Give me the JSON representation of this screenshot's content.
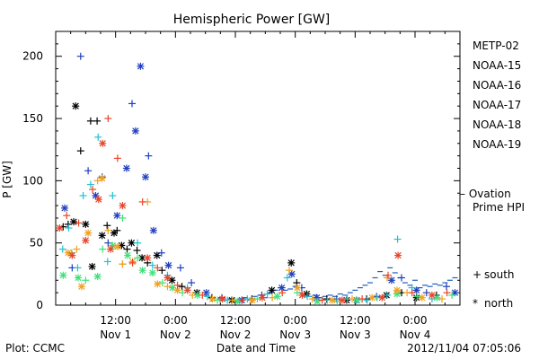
{
  "chart_data": {
    "type": "scatter",
    "title": "Hemispheric Power [GW]",
    "ylabel": "P [GW]",
    "xlabel": "Date and Time",
    "footer_left": "Plot: CCMC",
    "footer_right": "2012/11/04 07:05:06",
    "ylim": [
      0,
      220
    ],
    "xlim_hours": [
      0,
      81
    ],
    "y_ticks": [
      0,
      50,
      100,
      150,
      200
    ],
    "x_ticks": [
      {
        "h": 12,
        "time": "12:00",
        "date": "Nov 1"
      },
      {
        "h": 24,
        "time": "0:00",
        "date": "Nov 2"
      },
      {
        "h": 36,
        "time": "12:00",
        "date": "Nov 2"
      },
      {
        "h": 48,
        "time": "0:00",
        "date": "Nov 3"
      },
      {
        "h": 60,
        "time": "12:00",
        "date": "Nov 3"
      },
      {
        "h": 72,
        "time": "0:00",
        "date": "Nov 4"
      }
    ],
    "legend": {
      "satellites": [
        {
          "name": "METP-02",
          "color": "#000000"
        },
        {
          "name": "NOAA-15",
          "color": "#1f3fbf"
        },
        {
          "name": "NOAA-16",
          "color": "#22c0d0"
        },
        {
          "name": "NOAA-17",
          "color": "#3ee07a"
        },
        {
          "name": "NOAA-18",
          "color": "#f0a020"
        },
        {
          "name": "NOAA-19",
          "color": "#e8442a"
        }
      ],
      "ovation": {
        "label_1": "– Ovation",
        "label_2": "Prime HPI",
        "color": "#1f5fbf"
      },
      "markers": [
        {
          "symbol": "+",
          "label": "south"
        },
        {
          "symbol": "*",
          "label": "north"
        }
      ]
    },
    "series": [
      {
        "name": "METP-02",
        "color": "#000000",
        "points": [
          [
            1.5,
            63,
            "+"
          ],
          [
            2.5,
            65,
            "+"
          ],
          [
            3.6,
            67,
            "*"
          ],
          [
            4,
            160,
            "*"
          ],
          [
            5,
            124,
            "+"
          ],
          [
            6,
            65,
            "*"
          ],
          [
            7,
            148,
            "+"
          ],
          [
            7.3,
            31,
            "*"
          ],
          [
            8.3,
            148,
            "+"
          ],
          [
            9.3,
            56,
            "*"
          ],
          [
            10.3,
            64,
            "+"
          ],
          [
            11.7,
            58,
            "*"
          ],
          [
            12.3,
            60,
            "+"
          ],
          [
            13.2,
            48,
            "*"
          ],
          [
            14.3,
            45,
            "+"
          ],
          [
            15.2,
            50,
            "*"
          ],
          [
            16.3,
            44,
            "+"
          ],
          [
            17.3,
            38,
            "*"
          ],
          [
            18.4,
            34,
            "+"
          ],
          [
            20.3,
            40,
            "*"
          ],
          [
            21.3,
            28,
            "+"
          ],
          [
            23.3,
            20,
            "*"
          ],
          [
            25.3,
            15,
            "+"
          ],
          [
            28.3,
            10,
            "*"
          ],
          [
            31.3,
            6,
            "+"
          ],
          [
            35.3,
            4,
            "*"
          ],
          [
            39.3,
            5,
            "+"
          ],
          [
            43.3,
            12,
            "*"
          ],
          [
            47.2,
            34,
            "*"
          ],
          [
            48.3,
            18,
            "+"
          ],
          [
            50.3,
            9,
            "*"
          ],
          [
            54.3,
            5,
            "+"
          ],
          [
            58.3,
            4,
            "*"
          ],
          [
            62.3,
            5,
            "+"
          ],
          [
            66.3,
            8,
            "*"
          ],
          [
            69.3,
            10,
            "+"
          ],
          [
            72.3,
            6,
            "*"
          ],
          [
            76.3,
            8,
            "+"
          ]
        ]
      },
      {
        "name": "NOAA-15",
        "color": "#1f3fbf",
        "points": [
          [
            1.8,
            78,
            "*"
          ],
          [
            3.3,
            30,
            "+"
          ],
          [
            5,
            200,
            "+"
          ],
          [
            6.5,
            108,
            "+"
          ],
          [
            8,
            88,
            "*"
          ],
          [
            9.3,
            103,
            "+"
          ],
          [
            10.5,
            50,
            "+"
          ],
          [
            12.3,
            72,
            "*"
          ],
          [
            14.2,
            110,
            "*"
          ],
          [
            15.3,
            162,
            "+"
          ],
          [
            16,
            140,
            "*"
          ],
          [
            17,
            192,
            "*"
          ],
          [
            18,
            103,
            "*"
          ],
          [
            18.6,
            120,
            "+"
          ],
          [
            19.6,
            60,
            "*"
          ],
          [
            21.2,
            42,
            "+"
          ],
          [
            22.6,
            32,
            "*"
          ],
          [
            25,
            30,
            "+"
          ],
          [
            27.2,
            18,
            "+"
          ],
          [
            30.2,
            10,
            "*"
          ],
          [
            33.3,
            6,
            "+"
          ],
          [
            37.3,
            4,
            "*"
          ],
          [
            41.3,
            8,
            "+"
          ],
          [
            45.3,
            14,
            "*"
          ],
          [
            47.3,
            25,
            "*"
          ],
          [
            49.3,
            14,
            "+"
          ],
          [
            52.3,
            6,
            "*"
          ],
          [
            56.3,
            5,
            "+"
          ],
          [
            60.3,
            4,
            "*"
          ],
          [
            64.3,
            7,
            "+"
          ],
          [
            67.3,
            20,
            "*"
          ],
          [
            69.3,
            22,
            "+"
          ],
          [
            72.3,
            12,
            "*"
          ],
          [
            74.3,
            10,
            "+"
          ],
          [
            78.3,
            15,
            "+"
          ],
          [
            80,
            10,
            "*"
          ]
        ]
      },
      {
        "name": "NOAA-16",
        "color": "#22c0d0",
        "points": [
          [
            1.4,
            45,
            "+"
          ],
          [
            2.6,
            62,
            "+"
          ],
          [
            4.4,
            30,
            "+"
          ],
          [
            5.5,
            88,
            "+"
          ],
          [
            7,
            97,
            "+"
          ],
          [
            8.5,
            135,
            "+"
          ],
          [
            10.4,
            35,
            "+"
          ],
          [
            11.4,
            88,
            "+"
          ],
          [
            13.4,
            33,
            "+"
          ],
          [
            16.4,
            50,
            "+"
          ],
          [
            19.4,
            32,
            "+"
          ],
          [
            22.4,
            24,
            "+"
          ],
          [
            26.4,
            14,
            "+"
          ],
          [
            30.4,
            7,
            "+"
          ],
          [
            34.4,
            4,
            "+"
          ],
          [
            38.4,
            5,
            "+"
          ],
          [
            42.4,
            9,
            "+"
          ],
          [
            46.4,
            22,
            "+"
          ],
          [
            50.4,
            7,
            "+"
          ],
          [
            54.4,
            4,
            "+"
          ],
          [
            58.4,
            5,
            "+"
          ],
          [
            62.4,
            4,
            "+"
          ],
          [
            66.4,
            8,
            "+"
          ],
          [
            68.5,
            53,
            "+"
          ],
          [
            71.4,
            14,
            "+"
          ],
          [
            75.4,
            5,
            "+"
          ]
        ]
      },
      {
        "name": "NOAA-17",
        "color": "#3ee07a",
        "points": [
          [
            1.5,
            24,
            "*"
          ],
          [
            3.2,
            42,
            "+"
          ],
          [
            4.5,
            22,
            "*"
          ],
          [
            6,
            20,
            "+"
          ],
          [
            8.4,
            23,
            "*"
          ],
          [
            9.4,
            45,
            "+"
          ],
          [
            11.4,
            48,
            "*"
          ],
          [
            13.4,
            70,
            "+"
          ],
          [
            14.4,
            40,
            "*"
          ],
          [
            16.4,
            38,
            "+"
          ],
          [
            17.4,
            28,
            "*"
          ],
          [
            19.4,
            26,
            "*"
          ],
          [
            21.4,
            18,
            "+"
          ],
          [
            23.4,
            14,
            "*"
          ],
          [
            25.4,
            10,
            "+"
          ],
          [
            28.4,
            8,
            "*"
          ],
          [
            32.4,
            4,
            "+"
          ],
          [
            36.4,
            3,
            "*"
          ],
          [
            40.4,
            5,
            "+"
          ],
          [
            44.4,
            7,
            "*"
          ],
          [
            48.4,
            10,
            "+"
          ],
          [
            52.4,
            3,
            "*"
          ],
          [
            56.4,
            3,
            "+"
          ],
          [
            60.4,
            4,
            "*"
          ],
          [
            64.4,
            6,
            "+"
          ],
          [
            68.4,
            9,
            "*"
          ],
          [
            72.4,
            7,
            "+"
          ],
          [
            76.4,
            6,
            "*"
          ],
          [
            79.4,
            8,
            "+"
          ]
        ]
      },
      {
        "name": "NOAA-18",
        "color": "#f0a020",
        "points": [
          [
            2.5,
            42,
            "*"
          ],
          [
            4.2,
            45,
            "+"
          ],
          [
            5.2,
            15,
            "*"
          ],
          [
            6.5,
            58,
            "*"
          ],
          [
            8.4,
            100,
            "+"
          ],
          [
            9.3,
            102,
            "*"
          ],
          [
            10.5,
            60,
            "+"
          ],
          [
            12.4,
            47,
            "*"
          ],
          [
            13.4,
            33,
            "+"
          ],
          [
            15.4,
            35,
            "*"
          ],
          [
            18.4,
            83,
            "+"
          ],
          [
            20.4,
            17,
            "*"
          ],
          [
            22.4,
            15,
            "+"
          ],
          [
            24.4,
            12,
            "*"
          ],
          [
            27.4,
            8,
            "+"
          ],
          [
            31.4,
            5,
            "*"
          ],
          [
            35.4,
            4,
            "+"
          ],
          [
            39.4,
            4,
            "*"
          ],
          [
            43.4,
            6,
            "+"
          ],
          [
            46.8,
            28,
            "+"
          ],
          [
            48.4,
            14,
            "*"
          ],
          [
            51.4,
            5,
            "+"
          ],
          [
            55.4,
            4,
            "*"
          ],
          [
            59.4,
            5,
            "+"
          ],
          [
            63.4,
            6,
            "*"
          ],
          [
            66.4,
            22,
            "+"
          ],
          [
            68.4,
            12,
            "*"
          ],
          [
            70.4,
            10,
            "+"
          ],
          [
            73.4,
            6,
            "*"
          ],
          [
            77.4,
            5,
            "+"
          ]
        ]
      },
      {
        "name": "NOAA-19",
        "color": "#e8442a",
        "points": [
          [
            0.8,
            62,
            "*"
          ],
          [
            2.2,
            72,
            "+"
          ],
          [
            3.3,
            40,
            "*"
          ],
          [
            4.6,
            66,
            "+"
          ],
          [
            6,
            52,
            "*"
          ],
          [
            7.4,
            93,
            "+"
          ],
          [
            8.6,
            85,
            "*"
          ],
          [
            9.4,
            130,
            "*"
          ],
          [
            10.5,
            150,
            "+"
          ],
          [
            11,
            45,
            "*"
          ],
          [
            12.4,
            118,
            "+"
          ],
          [
            13.4,
            80,
            "*"
          ],
          [
            15.4,
            34,
            "+"
          ],
          [
            17.4,
            83,
            "+"
          ],
          [
            18.4,
            38,
            "*"
          ],
          [
            20.4,
            30,
            "+"
          ],
          [
            22.4,
            22,
            "*"
          ],
          [
            24.4,
            16,
            "+"
          ],
          [
            26.4,
            12,
            "*"
          ],
          [
            29.4,
            8,
            "+"
          ],
          [
            33.4,
            5,
            "*"
          ],
          [
            37.4,
            4,
            "+"
          ],
          [
            41.4,
            6,
            "*"
          ],
          [
            45.4,
            10,
            "+"
          ],
          [
            49.4,
            8,
            "*"
          ],
          [
            53.4,
            4,
            "+"
          ],
          [
            57.4,
            4,
            "*"
          ],
          [
            61.4,
            5,
            "+"
          ],
          [
            65.4,
            6,
            "*"
          ],
          [
            66.6,
            24,
            "+"
          ],
          [
            68.6,
            40,
            "*"
          ],
          [
            71.4,
            10,
            "+"
          ],
          [
            75.4,
            8,
            "*"
          ],
          [
            78.4,
            10,
            "+"
          ]
        ]
      }
    ],
    "ovation_hpi": [
      [
        33,
        5
      ],
      [
        34,
        4
      ],
      [
        35,
        5
      ],
      [
        36,
        4
      ],
      [
        37,
        5
      ],
      [
        38,
        6
      ],
      [
        39,
        4
      ],
      [
        40,
        7
      ],
      [
        41,
        8
      ],
      [
        42,
        6
      ],
      [
        43,
        10
      ],
      [
        44,
        12
      ],
      [
        45,
        14
      ],
      [
        46,
        12
      ],
      [
        47,
        13
      ],
      [
        48,
        15
      ],
      [
        49,
        10
      ],
      [
        50,
        8
      ],
      [
        51,
        7
      ],
      [
        52,
        8
      ],
      [
        53,
        6
      ],
      [
        54,
        7
      ],
      [
        55,
        8
      ],
      [
        56,
        7
      ],
      [
        57,
        9
      ],
      [
        58,
        8
      ],
      [
        59,
        10
      ],
      [
        60,
        12
      ],
      [
        61,
        14
      ],
      [
        62,
        16
      ],
      [
        63,
        18
      ],
      [
        64,
        22
      ],
      [
        65,
        27
      ],
      [
        66,
        24
      ],
      [
        67,
        30
      ],
      [
        68,
        26
      ],
      [
        69,
        22
      ],
      [
        70,
        18
      ],
      [
        71,
        16
      ],
      [
        72,
        20
      ],
      [
        73,
        14
      ],
      [
        74,
        16
      ],
      [
        75,
        15
      ],
      [
        76,
        17
      ],
      [
        77,
        16
      ],
      [
        78,
        18
      ],
      [
        79,
        20
      ],
      [
        80,
        22
      ]
    ]
  }
}
